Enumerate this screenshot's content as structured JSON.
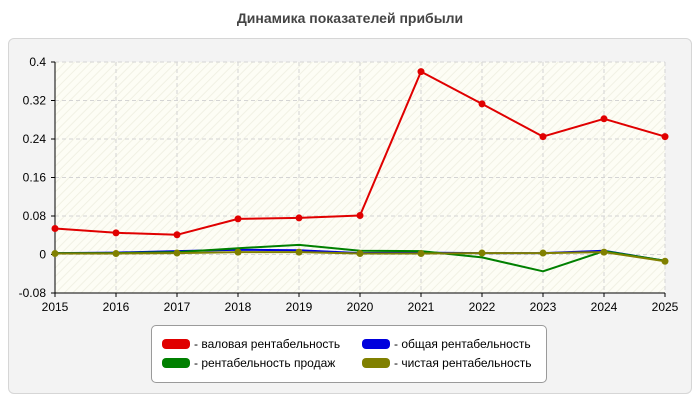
{
  "chart_data": {
    "type": "line",
    "title": "Динамика показателей прибыли",
    "xlabel": "",
    "ylabel": "",
    "x": [
      "2015",
      "2016",
      "2017",
      "2018",
      "2019",
      "2020",
      "2021",
      "2022",
      "2023",
      "2024",
      "2025"
    ],
    "ylim": [
      -0.08,
      0.4
    ],
    "yticks": [
      "-0.08",
      "0",
      "0.08",
      "0.16",
      "0.24",
      "0.32",
      "0.4"
    ],
    "grid": true,
    "legend_position": "bottom",
    "series": [
      {
        "name": "- валовая рентабельность",
        "color": "#e00000",
        "markers": true,
        "values": [
          0.054,
          0.045,
          0.041,
          0.074,
          0.076,
          0.081,
          0.38,
          0.313,
          0.245,
          0.282,
          0.245
        ]
      },
      {
        "name": "- общая рентабельность",
        "color": "#0000dd",
        "markers": false,
        "values": [
          0.003,
          0.004,
          0.007,
          0.01,
          0.009,
          0.003,
          0.004,
          0.003,
          0.003,
          0.008,
          -0.013
        ]
      },
      {
        "name": "- рентабельность продаж",
        "color": "#008000",
        "markers": false,
        "values": [
          0.003,
          0.003,
          0.005,
          0.013,
          0.02,
          0.008,
          0.007,
          -0.006,
          -0.035,
          0.007,
          -0.013
        ]
      },
      {
        "name": "- чистая рентабельность",
        "color": "#808000",
        "markers": true,
        "values": [
          0.002,
          0.002,
          0.003,
          0.005,
          0.005,
          0.002,
          0.002,
          0.003,
          0.003,
          0.005,
          -0.014
        ]
      }
    ]
  }
}
